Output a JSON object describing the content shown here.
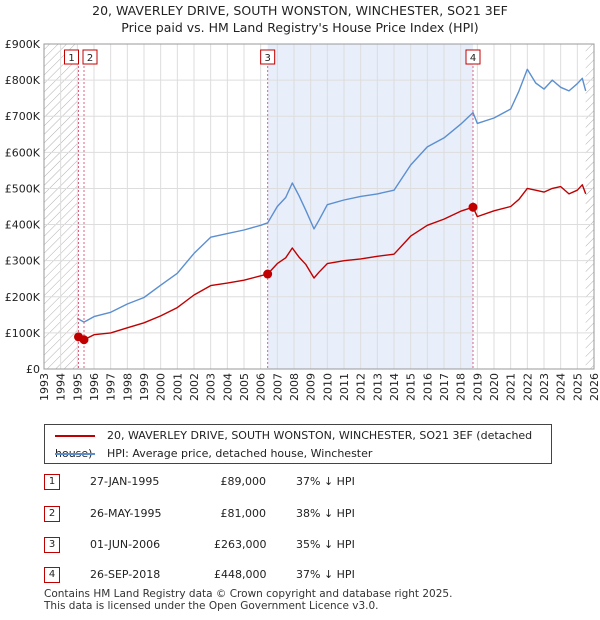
{
  "chart_data": {
    "type": "line",
    "title": "20, WAVERLEY DRIVE, SOUTH WONSTON, WINCHESTER, SO21 3EF",
    "subtitle": "Price paid vs. HM Land Registry's House Price Index (HPI)",
    "xlabel": "",
    "ylabel": "",
    "xlim": [
      1993,
      2026
    ],
    "ylim": [
      0,
      900000
    ],
    "x_ticks": [
      "1993",
      "1994",
      "1995",
      "1996",
      "1997",
      "1998",
      "1999",
      "2000",
      "2001",
      "2002",
      "2003",
      "2004",
      "2005",
      "2006",
      "2007",
      "2008",
      "2009",
      "2010",
      "2011",
      "2012",
      "2013",
      "2014",
      "2015",
      "2016",
      "2017",
      "2018",
      "2019",
      "2020",
      "2021",
      "2022",
      "2023",
      "2024",
      "2025",
      "2026"
    ],
    "y_ticks": [
      {
        "value": 0,
        "label": "£0"
      },
      {
        "value": 100000,
        "label": "£100K"
      },
      {
        "value": 200000,
        "label": "£200K"
      },
      {
        "value": 300000,
        "label": "£300K"
      },
      {
        "value": 400000,
        "label": "£400K"
      },
      {
        "value": 500000,
        "label": "£500K"
      },
      {
        "value": 600000,
        "label": "£600K"
      },
      {
        "value": 700000,
        "label": "£700K"
      },
      {
        "value": 800000,
        "label": "£800K"
      },
      {
        "value": 900000,
        "label": "£900K"
      }
    ],
    "grid": true,
    "data_start": 1995.0,
    "data_end": 2025.5,
    "shaded_region": [
      2006.42,
      2018.74
    ],
    "series": [
      {
        "name": "20, WAVERLEY DRIVE, SOUTH WONSTON, WINCHESTER, SO21 3EF (detached house)",
        "color": "#c00000",
        "x": [
          1995.0,
          1995.1,
          1995.4,
          1996,
          1997,
          1998,
          1999,
          2000,
          2001,
          2002,
          2003,
          2004,
          2005,
          2006.0,
          2006.42,
          2007,
          2007.5,
          2007.9,
          2008.3,
          2008.7,
          2009.2,
          2009.5,
          2010,
          2011,
          2012,
          2013,
          2014,
          2015,
          2016,
          2017,
          2018,
          2018.74,
          2019,
          2020,
          2021,
          2021.5,
          2022,
          2022.5,
          2023,
          2023.5,
          2024,
          2024.5,
          2025,
          2025.3,
          2025.5
        ],
        "y": [
          90000,
          89000,
          81000,
          95000,
          100000,
          114000,
          128000,
          147000,
          170000,
          205000,
          231000,
          238000,
          246000,
          258000,
          263000,
          292000,
          308000,
          335000,
          310000,
          290000,
          252000,
          268000,
          292000,
          300000,
          305000,
          312000,
          318000,
          368000,
          398000,
          415000,
          437000,
          448000,
          422000,
          438000,
          450000,
          470000,
          500000,
          495000,
          490000,
          500000,
          505000,
          485000,
          495000,
          510000,
          485000
        ]
      },
      {
        "name": "HPI: Average price, detached house, Winchester",
        "color": "#5b8fd0",
        "x": [
          1995.0,
          1995.4,
          1996,
          1997,
          1998,
          1999,
          2000,
          2001,
          2002,
          2003,
          2004,
          2005,
          2006.0,
          2006.42,
          2007,
          2007.5,
          2007.9,
          2008.3,
          2008.7,
          2009.2,
          2009.5,
          2010,
          2011,
          2012,
          2013,
          2014,
          2015,
          2016,
          2017,
          2018,
          2018.74,
          2019,
          2020,
          2021,
          2021.5,
          2022,
          2022.5,
          2023,
          2023.5,
          2024,
          2024.5,
          2025,
          2025.3,
          2025.5
        ],
        "y": [
          140000,
          130000,
          145000,
          157000,
          180000,
          198000,
          232000,
          265000,
          320000,
          365000,
          375000,
          385000,
          398000,
          405000,
          450000,
          475000,
          515000,
          480000,
          440000,
          388000,
          412000,
          455000,
          468000,
          478000,
          485000,
          495000,
          565000,
          615000,
          640000,
          678000,
          710000,
          680000,
          695000,
          720000,
          770000,
          830000,
          792000,
          775000,
          800000,
          780000,
          770000,
          790000,
          805000,
          770000
        ]
      }
    ],
    "sales": [
      {
        "label": "1",
        "date": "27-JAN-1995",
        "x": 1995.07,
        "price": 89000,
        "price_label": "£89,000",
        "hpi_label": "37% ↓ HPI"
      },
      {
        "label": "2",
        "date": "26-MAY-1995",
        "x": 1995.4,
        "price": 81000,
        "price_label": "£81,000",
        "hpi_label": "38% ↓ HPI"
      },
      {
        "label": "3",
        "date": "01-JUN-2006",
        "x": 2006.42,
        "price": 263000,
        "price_label": "£263,000",
        "hpi_label": "35% ↓ HPI"
      },
      {
        "label": "4",
        "date": "26-SEP-2018",
        "x": 2018.74,
        "price": 448000,
        "price_label": "£448,000",
        "hpi_label": "37% ↓ HPI"
      }
    ]
  },
  "legend": {
    "property_label": "20, WAVERLEY DRIVE, SOUTH WONSTON, WINCHESTER, SO21 3EF (detached house)",
    "hpi_label": "HPI: Average price, detached house, Winchester"
  },
  "footer": {
    "line1": "Contains HM Land Registry data © Crown copyright and database right 2025.",
    "line2": "This data is licensed under the Open Government Licence v3.0."
  },
  "colors": {
    "property": "#c00000",
    "hpi": "#5b8fd0",
    "shade": "#e8eefa",
    "hatch": "#b0b0b0",
    "grid": "#dddddd"
  }
}
